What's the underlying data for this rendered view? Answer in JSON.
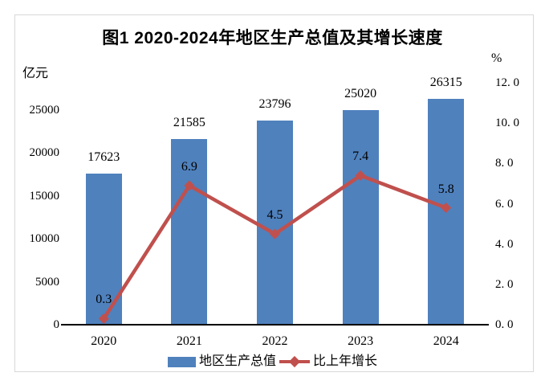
{
  "title": "图1 2020-2024年地区生产总值及其增长速度",
  "left_axis": {
    "unit": "亿元",
    "ticks": [
      {
        "v": 25000,
        "label": "25000"
      },
      {
        "v": 20000,
        "label": "20000"
      },
      {
        "v": 15000,
        "label": "15000"
      },
      {
        "v": 10000,
        "label": "10000"
      },
      {
        "v": 5000,
        "label": "5000"
      },
      {
        "v": 0,
        "label": "0"
      }
    ]
  },
  "right_axis": {
    "unit": "%",
    "ticks": [
      {
        "v": 12,
        "label": "12. 0"
      },
      {
        "v": 10,
        "label": "10. 0"
      },
      {
        "v": 8,
        "label": "8. 0"
      },
      {
        "v": 6,
        "label": "6. 0"
      },
      {
        "v": 4,
        "label": "4. 0"
      },
      {
        "v": 2,
        "label": "2. 0"
      },
      {
        "v": 0,
        "label": "0. 0"
      }
    ]
  },
  "legend": {
    "bar_label": "地区生产总值",
    "line_label": "比上年增长"
  },
  "colors": {
    "bar": "#4f81bd",
    "line": "#c0504d",
    "axis": "#000000",
    "frame_border": "#d8d8d8"
  },
  "chart_data": {
    "type": "bar",
    "subtype": "combo-bar-line-dual-axis",
    "title": "图1 2020-2024年地区生产总值及其增长速度",
    "categories": [
      "2020",
      "2021",
      "2022",
      "2023",
      "2024"
    ],
    "series": [
      {
        "name": "地区生产总值",
        "type": "bar",
        "axis": "left",
        "unit": "亿元",
        "color": "#4f81bd",
        "values": [
          17623,
          21585,
          23796,
          25020,
          26315
        ]
      },
      {
        "name": "比上年增长",
        "type": "line",
        "axis": "right",
        "unit": "%",
        "color": "#c0504d",
        "marker": "diamond",
        "values": [
          0.3,
          6.9,
          4.5,
          7.4,
          5.8
        ]
      }
    ],
    "xlabel": "",
    "ylabel_left": "亿元",
    "ylabel_right": "%",
    "left_ylim": [
      0,
      28000
    ],
    "right_ylim": [
      0,
      12
    ],
    "left_tick_step": 5000,
    "right_tick_step": 2,
    "grid": false,
    "legend_position": "bottom",
    "data_labels": true
  }
}
